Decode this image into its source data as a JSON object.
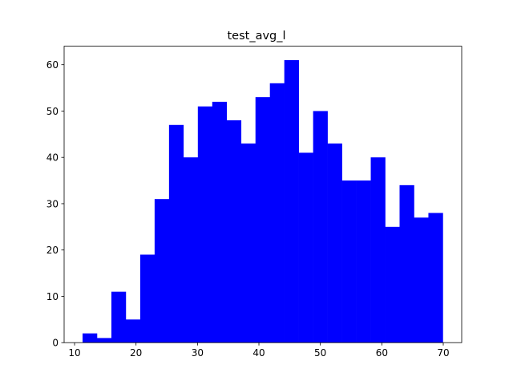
{
  "chart_data": {
    "type": "bar",
    "subtype": "histogram",
    "title": "test_avg_l",
    "xlabel": "",
    "ylabel": "",
    "bin_start": 11.3,
    "bin_width": 2.345,
    "bin_edges": [
      11.3,
      13.645,
      15.99,
      18.335,
      20.68,
      23.025,
      25.37,
      27.715,
      30.06,
      32.405,
      34.75,
      37.095,
      39.44,
      41.785,
      44.13,
      46.475,
      48.82,
      51.165,
      53.51,
      55.855,
      58.2,
      60.545,
      62.89,
      65.235,
      67.58,
      69.925
    ],
    "values": [
      2,
      1,
      11,
      5,
      19,
      31,
      47,
      40,
      51,
      52,
      48,
      43,
      53,
      56,
      61,
      41,
      50,
      43,
      35,
      35,
      40,
      25,
      34,
      27,
      28
    ],
    "xlim": [
      8.3,
      73
    ],
    "ylim": [
      0,
      64
    ],
    "xticks": [
      10,
      20,
      30,
      40,
      50,
      60,
      70
    ],
    "yticks": [
      0,
      10,
      20,
      30,
      40,
      50,
      60
    ],
    "grid": false,
    "legend": "none",
    "bar_color": "#0000ff"
  }
}
